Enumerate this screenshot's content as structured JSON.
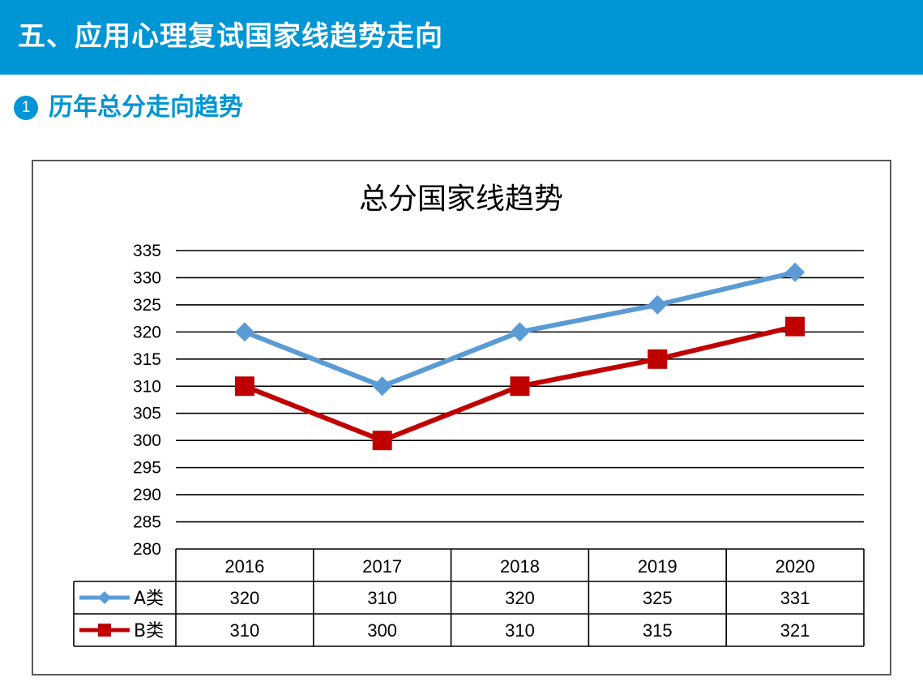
{
  "header": {
    "title": "五、应用心理复试国家线趋势走向"
  },
  "subheading": {
    "number": "1",
    "title": "历年总分走向趋势"
  },
  "colors": {
    "brand": "#0095d5",
    "series_a": "#5b9bd5",
    "series_b": "#c00000"
  },
  "chart_data": {
    "type": "line",
    "title": "总分国家线趋势",
    "categories": [
      "2016",
      "2017",
      "2018",
      "2019",
      "2020"
    ],
    "ylim": [
      280,
      335
    ],
    "ytick_step": 5,
    "grid": true,
    "data_table": true,
    "series": [
      {
        "name": "A类",
        "values": [
          320,
          310,
          320,
          325,
          331
        ],
        "color": "#5b9bd5",
        "marker": "diamond"
      },
      {
        "name": "B类",
        "values": [
          310,
          300,
          310,
          315,
          321
        ],
        "color": "#c00000",
        "marker": "square"
      }
    ]
  }
}
